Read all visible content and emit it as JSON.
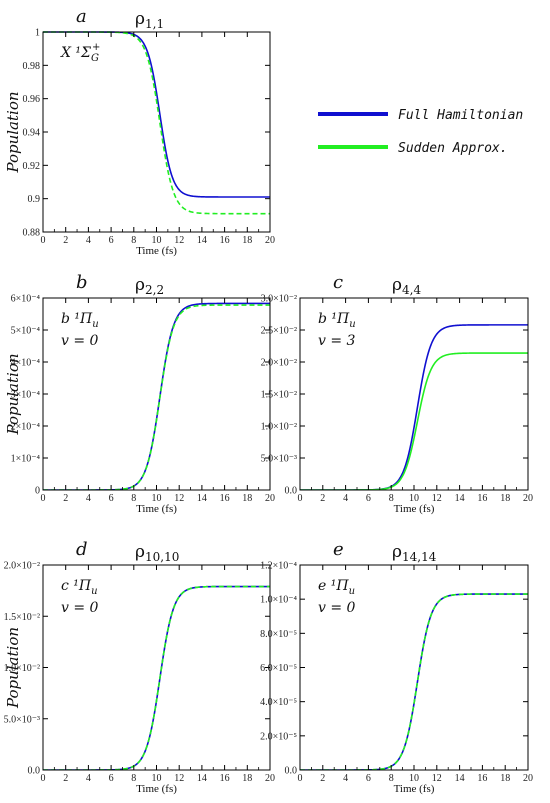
{
  "legend": {
    "placement": "right of panel a",
    "entries": [
      {
        "label": "Full Hamiltonian",
        "color": "#1010d0"
      },
      {
        "label": "Sudden Approx.",
        "color": "#22ee22"
      }
    ]
  },
  "chart_data": [
    {
      "type": "line",
      "panel": "a",
      "title": "ρ",
      "title_sub": "1,1",
      "state_lines": [
        "X ¹Σ",
        "G",
        "+"
      ],
      "xlabel": "Time (fs)",
      "ylabel": "Population",
      "xlim": [
        0,
        20
      ],
      "ylim": [
        0.88,
        1.0
      ],
      "x_ticks": [
        0,
        2,
        4,
        6,
        8,
        10,
        12,
        14,
        16,
        18,
        20
      ],
      "y_ticks": [
        {
          "value": 0.88,
          "label": "0.88"
        },
        {
          "value": 0.9,
          "label": "0.9"
        },
        {
          "value": 0.92,
          "label": "0.92"
        },
        {
          "value": 0.94,
          "label": "0.94"
        },
        {
          "value": 0.96,
          "label": "0.96"
        },
        {
          "value": 0.98,
          "label": "0.98"
        },
        {
          "value": 1.0,
          "label": "1"
        }
      ],
      "series": [
        {
          "name": "Full Hamiltonian",
          "color": "#1010d0",
          "start": 1.0,
          "end": 0.901,
          "center": 10.3,
          "width": 0.55
        },
        {
          "name": "Sudden Approx.",
          "color": "#22ee22",
          "start": 1.0,
          "end": 0.891,
          "center": 10.3,
          "width": 0.6
        }
      ]
    },
    {
      "type": "line",
      "panel": "b",
      "title": "ρ",
      "title_sub": "2,2",
      "state_lines": [
        "b ¹Π",
        "u",
        "v = 0"
      ],
      "xlabel": "Time (fs)",
      "ylabel": "Population",
      "xlim": [
        0,
        20
      ],
      "ylim": [
        0,
        0.0006
      ],
      "x_ticks": [
        0,
        2,
        4,
        6,
        8,
        10,
        12,
        14,
        16,
        18,
        20
      ],
      "y_ticks": [
        {
          "value": 0,
          "label": "0"
        },
        {
          "value": 0.0001,
          "label": "1×10⁻⁴"
        },
        {
          "value": 0.0002,
          "label": "2×10⁻⁴"
        },
        {
          "value": 0.0003,
          "label": "3×10⁻⁴"
        },
        {
          "value": 0.0004,
          "label": "4×10⁻⁴"
        },
        {
          "value": 0.0005,
          "label": "5×10⁻⁴"
        },
        {
          "value": 0.0006,
          "label": "6×10⁻⁴"
        }
      ],
      "series": [
        {
          "name": "Full Hamiltonian",
          "color": "#1010d0",
          "start": 0,
          "end": 0.000583,
          "center": 10.3,
          "width": 0.6
        },
        {
          "name": "Sudden Approx.",
          "color": "#22ee22",
          "start": 0,
          "end": 0.000578,
          "center": 10.3,
          "width": 0.6
        }
      ]
    },
    {
      "type": "line",
      "panel": "c",
      "title": "ρ",
      "title_sub": "4,4",
      "state_lines": [
        "b ¹Π",
        "u",
        "v = 3"
      ],
      "xlabel": "Time (fs)",
      "ylabel": "",
      "xlim": [
        0,
        20
      ],
      "ylim": [
        0,
        0.03
      ],
      "x_ticks": [
        0,
        2,
        4,
        6,
        8,
        10,
        12,
        14,
        16,
        18,
        20
      ],
      "y_ticks": [
        {
          "value": 0,
          "label": "0.0"
        },
        {
          "value": 0.005,
          "label": "5.0×10⁻³"
        },
        {
          "value": 0.01,
          "label": "1.0×10⁻²"
        },
        {
          "value": 0.015,
          "label": "1.5×10⁻²"
        },
        {
          "value": 0.02,
          "label": "2.0×10⁻²"
        },
        {
          "value": 0.025,
          "label": "2.5×10⁻²"
        },
        {
          "value": 0.03,
          "label": "3.0×10⁻²"
        }
      ],
      "series": [
        {
          "name": "Full Hamiltonian",
          "color": "#1010d0",
          "start": 0,
          "end": 0.0258,
          "center": 10.3,
          "width": 0.6
        },
        {
          "name": "Sudden Approx.",
          "color": "#22ee22",
          "start": 0,
          "end": 0.0214,
          "center": 10.3,
          "width": 0.6
        }
      ]
    },
    {
      "type": "line",
      "panel": "d",
      "title": "ρ",
      "title_sub": "10,10",
      "state_lines": [
        "c ¹Π",
        "u",
        "v = 0"
      ],
      "xlabel": "Time (fs)",
      "ylabel": "Population",
      "xlim": [
        0,
        20
      ],
      "ylim": [
        0,
        0.02
      ],
      "x_ticks": [
        0,
        2,
        4,
        6,
        8,
        10,
        12,
        14,
        16,
        18,
        20
      ],
      "y_ticks": [
        {
          "value": 0,
          "label": "0.0"
        },
        {
          "value": 0.005,
          "label": "5.0×10⁻³"
        },
        {
          "value": 0.01,
          "label": "1.0×10⁻²"
        },
        {
          "value": 0.015,
          "label": "1.5×10⁻²"
        },
        {
          "value": 0.02,
          "label": "2.0×10⁻²"
        }
      ],
      "series": [
        {
          "name": "Full Hamiltonian",
          "color": "#1010d0",
          "start": 0,
          "end": 0.0179,
          "center": 10.3,
          "width": 0.6
        },
        {
          "name": "Sudden Approx.",
          "color": "#22ee22",
          "start": 0,
          "end": 0.0179,
          "center": 10.3,
          "width": 0.6
        }
      ]
    },
    {
      "type": "line",
      "panel": "e",
      "title": "ρ",
      "title_sub": "14,14",
      "state_lines": [
        "e ¹Π",
        "u",
        "v = 0"
      ],
      "xlabel": "Time (fs)",
      "ylabel": "",
      "xlim": [
        0,
        20
      ],
      "ylim": [
        0,
        0.00012
      ],
      "x_ticks": [
        0,
        2,
        4,
        6,
        8,
        10,
        12,
        14,
        16,
        18,
        20
      ],
      "y_ticks": [
        {
          "value": 0,
          "label": "0.0"
        },
        {
          "value": 2e-05,
          "label": "2.0×10⁻⁵"
        },
        {
          "value": 4e-05,
          "label": "4.0×10⁻⁵"
        },
        {
          "value": 6e-05,
          "label": "6.0×10⁻⁵"
        },
        {
          "value": 8e-05,
          "label": "8.0×10⁻⁵"
        },
        {
          "value": 0.0001,
          "label": "1.0×10⁻⁴"
        },
        {
          "value": 0.00012,
          "label": "1.2×10⁻⁴"
        }
      ],
      "series": [
        {
          "name": "Full Hamiltonian",
          "color": "#1010d0",
          "start": 0,
          "end": 0.000103,
          "center": 10.3,
          "width": 0.6
        },
        {
          "name": "Sudden Approx.",
          "color": "#22ee22",
          "start": 0,
          "end": 0.000103,
          "center": 10.3,
          "width": 0.6
        }
      ]
    }
  ]
}
